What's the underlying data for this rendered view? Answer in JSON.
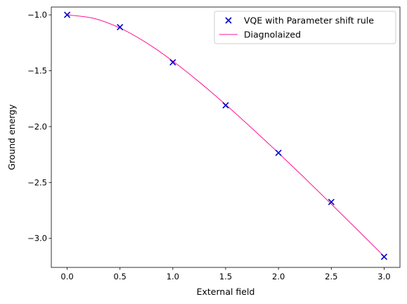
{
  "chart_data": {
    "type": "scatter",
    "title": "",
    "xlabel": "External field",
    "ylabel": "Ground energy",
    "xlim": [
      -0.15,
      3.15
    ],
    "ylim": [
      -3.26,
      -0.93
    ],
    "xticks": [
      0.0,
      0.5,
      1.0,
      1.5,
      2.0,
      2.5,
      3.0
    ],
    "xtick_labels": [
      "0.0",
      "0.5",
      "1.0",
      "1.5",
      "2.0",
      "2.5",
      "3.0"
    ],
    "yticks": [
      -1.0,
      -1.5,
      -2.0,
      -2.5,
      -3.0
    ],
    "ytick_labels": [
      "−1.0",
      "−1.5",
      "−2.0",
      "−2.5",
      "−3.0"
    ],
    "grid": false,
    "legend": "top-right",
    "series": [
      {
        "name": "VQE with Parameter shift rule",
        "kind": "scatter",
        "marker": "x",
        "color": "#0000cc",
        "x": [
          0.0,
          0.5,
          1.0,
          1.5,
          2.0,
          2.5,
          3.0
        ],
        "y": [
          -1.0,
          -1.11,
          -1.425,
          -1.81,
          -2.235,
          -2.675,
          -3.165
        ]
      },
      {
        "name": "Diagnolaized",
        "kind": "line",
        "color": "#ff1493",
        "x": [
          0.0,
          0.25,
          0.5,
          0.75,
          1.0,
          1.25,
          1.5,
          1.75,
          2.0,
          2.25,
          2.5,
          2.75,
          3.0
        ],
        "y": [
          -1.0,
          -1.031,
          -1.118,
          -1.25,
          -1.414,
          -1.601,
          -1.803,
          -2.016,
          -2.236,
          -2.462,
          -2.693,
          -2.926,
          -3.162
        ]
      }
    ]
  }
}
